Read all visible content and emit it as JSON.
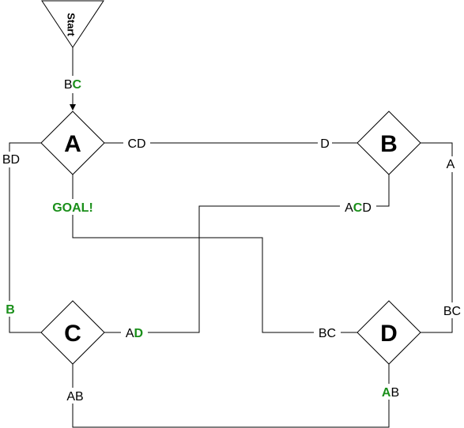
{
  "colors": {
    "accent": "#1a8f1a",
    "line": "#000000",
    "text": "#000000"
  },
  "start": {
    "label": "Start"
  },
  "nodes": {
    "A": "A",
    "B": "B",
    "C": "C",
    "D": "D"
  },
  "edges": {
    "start_a": [
      {
        "t": "B",
        "g": false
      },
      {
        "t": "C",
        "g": true
      }
    ],
    "a_right": [
      {
        "t": "CD",
        "g": false
      }
    ],
    "b_left": [
      {
        "t": "D",
        "g": false
      }
    ],
    "a_left": [
      {
        "t": "BD",
        "g": false
      }
    ],
    "a_goal": [
      {
        "t": "GOAL!",
        "g": true
      }
    ],
    "b_right": [
      {
        "t": "A",
        "g": false
      }
    ],
    "b_bottom": [
      {
        "t": "A",
        "g": false
      },
      {
        "t": "C",
        "g": true
      },
      {
        "t": "D",
        "g": false
      }
    ],
    "c_left": [
      {
        "t": "B",
        "g": true
      }
    ],
    "c_right": [
      {
        "t": "A",
        "g": false
      },
      {
        "t": "D",
        "g": true
      }
    ],
    "c_bottom": [
      {
        "t": "AB",
        "g": false
      }
    ],
    "d_left": [
      {
        "t": "BC",
        "g": false
      }
    ],
    "d_right": [
      {
        "t": "BC",
        "g": false
      }
    ],
    "d_bottom": [
      {
        "t": "A",
        "g": true
      },
      {
        "t": "B",
        "g": false
      }
    ]
  }
}
